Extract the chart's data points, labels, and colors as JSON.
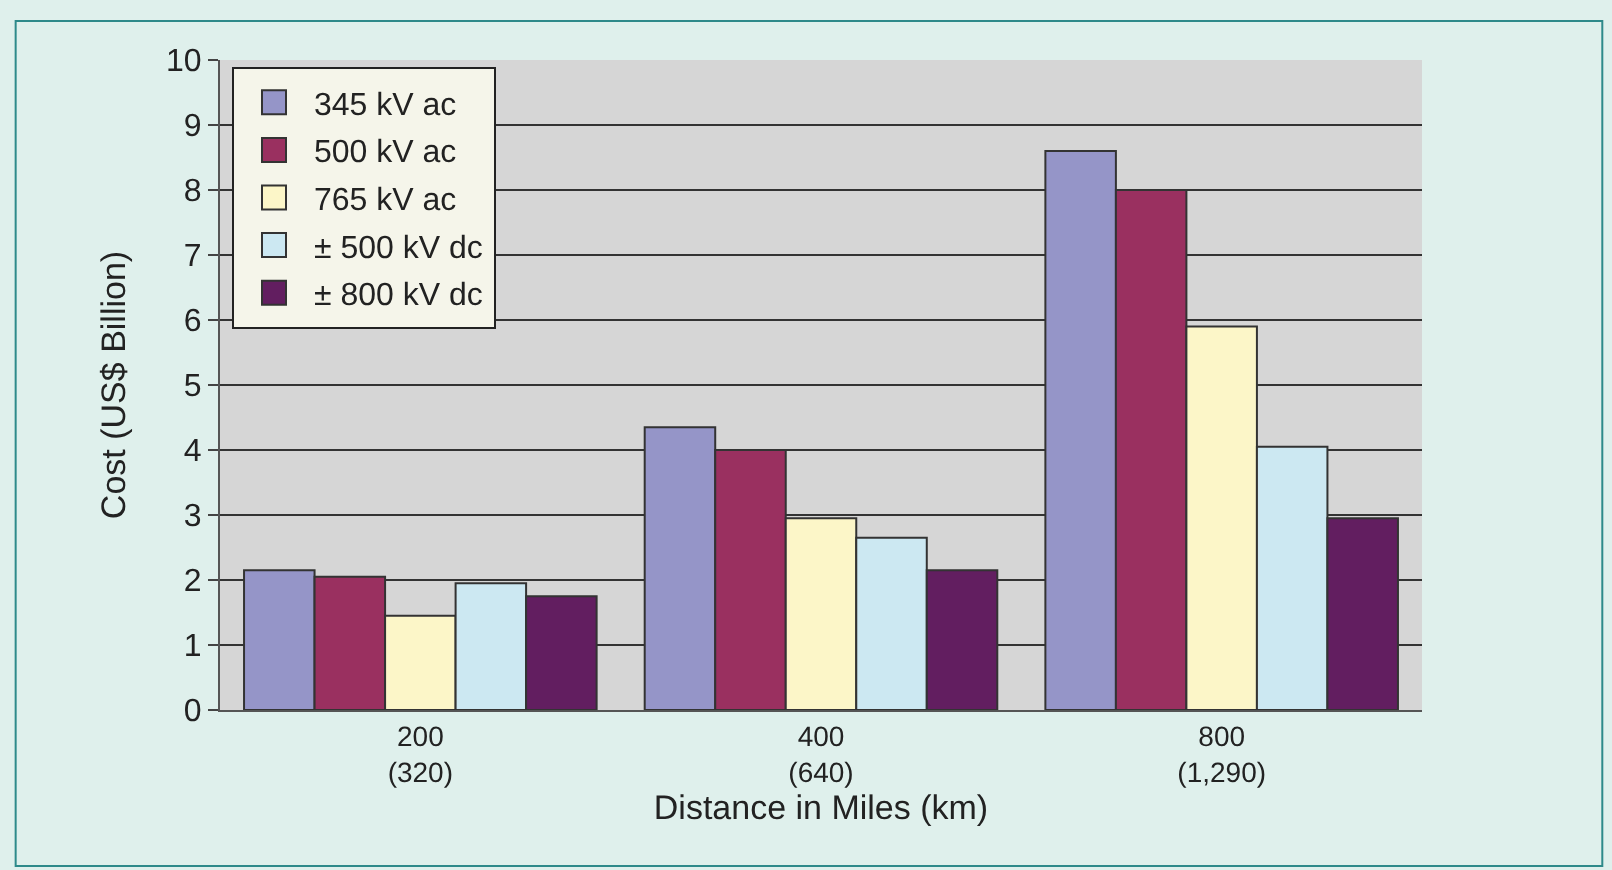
{
  "chart_data": {
    "type": "bar",
    "xlabel": "Distance in Miles (km)",
    "ylabel": "Cost (US$ Billion)",
    "categories": [
      "200\n(320)",
      "400\n(640)",
      "800\n(1,290)"
    ],
    "series": [
      {
        "name": "345 kV ac",
        "color": "#9595c8",
        "values": [
          2.15,
          4.35,
          8.6
        ]
      },
      {
        "name": "500 kV ac",
        "color": "#9a3060",
        "values": [
          2.05,
          4.0,
          8.0
        ]
      },
      {
        "name": "765 kV ac",
        "color": "#fcf6c8",
        "values": [
          1.45,
          2.95,
          5.9
        ]
      },
      {
        "name": "± 500 kV dc",
        "color": "#cce8f2",
        "values": [
          1.95,
          2.65,
          4.05
        ]
      },
      {
        "name": "± 800 kV dc",
        "color": "#621e60",
        "values": [
          1.75,
          2.15,
          2.95
        ]
      }
    ],
    "ylim": [
      0,
      10
    ],
    "yticks": [
      0,
      1,
      2,
      3,
      4,
      5,
      6,
      7,
      8,
      9,
      10
    ],
    "grid": "y",
    "legend": "top left"
  }
}
